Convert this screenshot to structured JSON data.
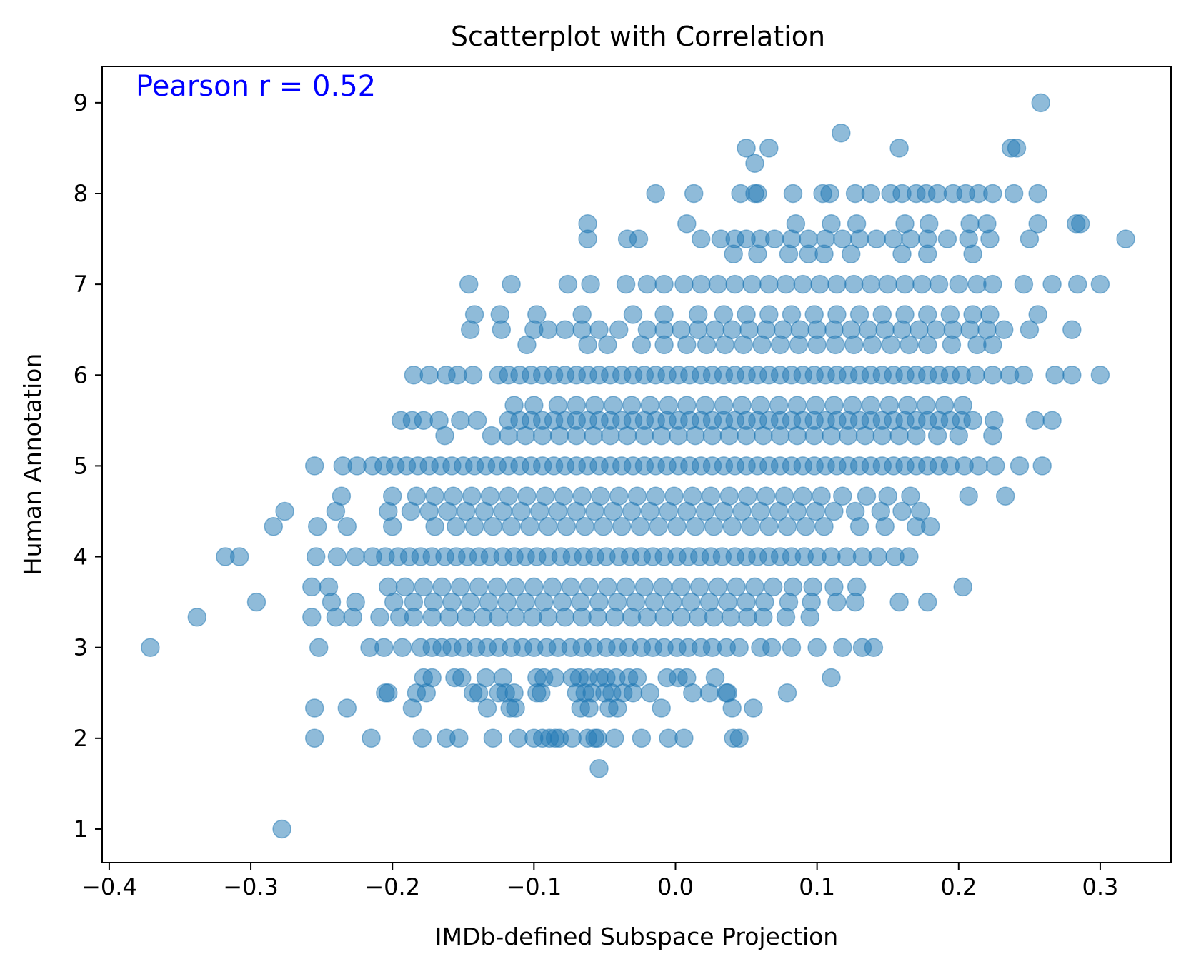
{
  "chart_data": {
    "type": "scatter",
    "title": "Scatterplot with Correlation",
    "xlabel": "IMDb-defined Subspace Projection",
    "ylabel": "Human Annotation",
    "xlim": [
      -0.405,
      0.35
    ],
    "ylim": [
      0.63,
      9.4
    ],
    "x_ticks": [
      -0.4,
      -0.3,
      -0.2,
      -0.1,
      0.0,
      0.1,
      0.2,
      0.3
    ],
    "x_tick_labels": [
      "−0.4",
      "−0.3",
      "−0.2",
      "−0.1",
      "0.0",
      "0.1",
      "0.2",
      "0.3"
    ],
    "y_ticks": [
      1,
      2,
      3,
      4,
      5,
      6,
      7,
      8,
      9
    ],
    "y_tick_labels": [
      "1",
      "2",
      "3",
      "4",
      "5",
      "6",
      "7",
      "8",
      "9"
    ],
    "grid": false,
    "legend": "none",
    "marker_color": "#1f77b4",
    "marker_alpha": 0.5,
    "annotation": {
      "text": "Pearson r = 0.52",
      "color": "#0000ff",
      "placement": "top-left"
    },
    "levels": [
      {
        "y": 1.0,
        "x": [
          -0.278
        ]
      },
      {
        "y": 1.667,
        "x": [
          -0.054
        ]
      },
      {
        "y": 2.0,
        "x": [
          -0.255,
          -0.215,
          -0.179,
          -0.162,
          -0.153,
          -0.129,
          -0.111,
          -0.1,
          -0.094,
          -0.089,
          -0.085,
          -0.082,
          -0.073,
          -0.062,
          -0.057,
          -0.055,
          -0.043,
          -0.024,
          -0.005,
          0.006,
          0.041,
          0.045
        ]
      },
      {
        "y": 2.333,
        "x": [
          -0.255,
          -0.232,
          -0.186,
          -0.133,
          -0.117,
          -0.113,
          -0.067,
          -0.061,
          -0.047,
          -0.041,
          -0.01,
          0.04,
          0.055
        ]
      },
      {
        "y": 2.5,
        "x": [
          -0.205,
          -0.203,
          -0.183,
          -0.176,
          -0.143,
          -0.139,
          -0.125,
          -0.12,
          -0.114,
          -0.098,
          -0.095,
          -0.07,
          -0.064,
          -0.059,
          -0.05,
          -0.045,
          -0.037,
          -0.03,
          -0.018,
          0.012,
          0.024,
          0.036,
          0.037,
          0.079
        ]
      },
      {
        "y": 2.667,
        "x": [
          -0.178,
          -0.172,
          -0.156,
          -0.151,
          -0.134,
          -0.122,
          -0.098,
          -0.093,
          -0.085,
          -0.073,
          -0.068,
          -0.062,
          -0.054,
          -0.049,
          -0.042,
          -0.033,
          -0.027,
          -0.006,
          0.002,
          0.008,
          0.028,
          0.11
        ]
      },
      {
        "y": 3.0,
        "x": [
          -0.371,
          -0.252,
          -0.216,
          -0.206,
          -0.193,
          -0.18,
          -0.172,
          -0.165,
          -0.158,
          -0.15,
          -0.141,
          -0.133,
          -0.125,
          -0.116,
          -0.108,
          -0.1,
          -0.091,
          -0.083,
          -0.074,
          -0.066,
          -0.058,
          -0.049,
          -0.041,
          -0.033,
          -0.024,
          -0.016,
          -0.008,
          0.001,
          0.009,
          0.018,
          0.026,
          0.036,
          0.045,
          0.06,
          0.068,
          0.082,
          0.1,
          0.118,
          0.132,
          0.14
        ]
      },
      {
        "y": 3.333,
        "x": [
          -0.338,
          -0.257,
          -0.24,
          -0.228,
          -0.209,
          -0.195,
          -0.185,
          -0.172,
          -0.16,
          -0.148,
          -0.136,
          -0.125,
          -0.113,
          -0.101,
          -0.09,
          -0.078,
          -0.066,
          -0.055,
          -0.043,
          -0.031,
          -0.02,
          -0.008,
          0.004,
          0.016,
          0.027,
          0.039,
          0.051,
          0.062,
          0.078,
          0.095
        ]
      },
      {
        "y": 3.5,
        "x": [
          -0.296,
          -0.243,
          -0.226,
          -0.199,
          -0.185,
          -0.171,
          -0.158,
          -0.145,
          -0.132,
          -0.119,
          -0.106,
          -0.093,
          -0.08,
          -0.067,
          -0.054,
          -0.041,
          -0.028,
          -0.015,
          -0.002,
          0.011,
          0.024,
          0.037,
          0.05,
          0.063,
          0.08,
          0.096,
          0.114,
          0.127,
          0.158,
          0.178
        ]
      },
      {
        "y": 3.667,
        "x": [
          -0.257,
          -0.245,
          -0.203,
          -0.191,
          -0.178,
          -0.165,
          -0.152,
          -0.139,
          -0.126,
          -0.113,
          -0.1,
          -0.087,
          -0.074,
          -0.061,
          -0.048,
          -0.035,
          -0.022,
          -0.009,
          0.004,
          0.017,
          0.03,
          0.043,
          0.056,
          0.069,
          0.083,
          0.097,
          0.112,
          0.128,
          0.203
        ]
      },
      {
        "y": 4.0,
        "x": [
          -0.318,
          -0.308,
          -0.254,
          -0.239,
          -0.226,
          -0.214,
          -0.205,
          -0.196,
          -0.188,
          -0.18,
          -0.172,
          -0.163,
          -0.155,
          -0.147,
          -0.139,
          -0.131,
          -0.122,
          -0.114,
          -0.106,
          -0.098,
          -0.09,
          -0.081,
          -0.073,
          -0.065,
          -0.057,
          -0.049,
          -0.04,
          -0.032,
          -0.024,
          -0.016,
          -0.008,
          0.001,
          0.009,
          0.017,
          0.025,
          0.033,
          0.042,
          0.05,
          0.058,
          0.066,
          0.074,
          0.082,
          0.091,
          0.1,
          0.11,
          0.121,
          0.132,
          0.143,
          0.155,
          0.165
        ]
      },
      {
        "y": 4.333,
        "x": [
          -0.284,
          -0.253,
          -0.232,
          -0.2,
          -0.17,
          -0.155,
          -0.142,
          -0.129,
          -0.116,
          -0.103,
          -0.09,
          -0.077,
          -0.064,
          -0.051,
          -0.038,
          -0.025,
          -0.012,
          0.001,
          0.014,
          0.027,
          0.04,
          0.053,
          0.066,
          0.079,
          0.092,
          0.105,
          0.13,
          0.148,
          0.17,
          0.18
        ]
      },
      {
        "y": 4.5,
        "x": [
          -0.276,
          -0.24,
          -0.203,
          -0.187,
          -0.174,
          -0.161,
          -0.148,
          -0.135,
          -0.122,
          -0.109,
          -0.096,
          -0.083,
          -0.07,
          -0.057,
          -0.044,
          -0.031,
          -0.018,
          -0.005,
          0.008,
          0.021,
          0.034,
          0.047,
          0.06,
          0.073,
          0.086,
          0.099,
          0.112,
          0.127,
          0.145,
          0.16,
          0.173
        ]
      },
      {
        "y": 4.667,
        "x": [
          -0.236,
          -0.2,
          -0.183,
          -0.17,
          -0.157,
          -0.144,
          -0.131,
          -0.118,
          -0.105,
          -0.092,
          -0.079,
          -0.066,
          -0.053,
          -0.04,
          -0.027,
          -0.014,
          -0.001,
          0.012,
          0.025,
          0.038,
          0.051,
          0.064,
          0.077,
          0.09,
          0.103,
          0.118,
          0.135,
          0.15,
          0.166,
          0.207,
          0.233
        ]
      },
      {
        "y": 5.0,
        "x": [
          -0.255,
          -0.235,
          -0.225,
          -0.214,
          -0.206,
          -0.198,
          -0.19,
          -0.182,
          -0.174,
          -0.166,
          -0.158,
          -0.15,
          -0.142,
          -0.134,
          -0.126,
          -0.118,
          -0.11,
          -0.102,
          -0.094,
          -0.086,
          -0.078,
          -0.07,
          -0.062,
          -0.054,
          -0.046,
          -0.038,
          -0.03,
          -0.022,
          -0.014,
          -0.006,
          0.002,
          0.01,
          0.018,
          0.026,
          0.034,
          0.042,
          0.05,
          0.058,
          0.066,
          0.074,
          0.082,
          0.09,
          0.098,
          0.106,
          0.114,
          0.122,
          0.13,
          0.138,
          0.146,
          0.154,
          0.162,
          0.17,
          0.178,
          0.186,
          0.194,
          0.204,
          0.214,
          0.226,
          0.243,
          0.259
        ]
      },
      {
        "y": 5.333,
        "x": [
          -0.163,
          -0.13,
          -0.118,
          -0.106,
          -0.094,
          -0.082,
          -0.07,
          -0.058,
          -0.046,
          -0.034,
          -0.022,
          -0.01,
          0.002,
          0.014,
          0.026,
          0.038,
          0.05,
          0.062,
          0.074,
          0.086,
          0.098,
          0.11,
          0.122,
          0.134,
          0.146,
          0.158,
          0.17,
          0.185,
          0.2,
          0.224
        ]
      },
      {
        "y": 5.5,
        "x": [
          -0.194,
          -0.186,
          -0.178,
          -0.167,
          -0.152,
          -0.14,
          -0.118,
          -0.11,
          -0.102,
          -0.094,
          -0.086,
          -0.078,
          -0.07,
          -0.062,
          -0.054,
          -0.046,
          -0.038,
          -0.03,
          -0.022,
          -0.014,
          -0.006,
          0.002,
          0.01,
          0.018,
          0.026,
          0.034,
          0.042,
          0.05,
          0.058,
          0.066,
          0.074,
          0.082,
          0.09,
          0.098,
          0.106,
          0.114,
          0.122,
          0.13,
          0.138,
          0.146,
          0.154,
          0.162,
          0.17,
          0.178,
          0.186,
          0.194,
          0.202,
          0.21,
          0.225,
          0.254,
          0.266
        ]
      },
      {
        "y": 5.667,
        "x": [
          -0.114,
          -0.1,
          -0.083,
          -0.07,
          -0.057,
          -0.044,
          -0.031,
          -0.018,
          -0.005,
          0.008,
          0.021,
          0.034,
          0.047,
          0.06,
          0.073,
          0.086,
          0.099,
          0.112,
          0.125,
          0.138,
          0.151,
          0.164,
          0.177,
          0.19,
          0.203
        ]
      },
      {
        "y": 6.0,
        "x": [
          -0.185,
          -0.174,
          -0.162,
          -0.154,
          -0.143,
          -0.125,
          -0.118,
          -0.11,
          -0.102,
          -0.094,
          -0.086,
          -0.078,
          -0.07,
          -0.062,
          -0.054,
          -0.046,
          -0.038,
          -0.03,
          -0.022,
          -0.014,
          -0.006,
          0.002,
          0.01,
          0.018,
          0.026,
          0.034,
          0.042,
          0.05,
          0.058,
          0.066,
          0.074,
          0.082,
          0.09,
          0.098,
          0.106,
          0.114,
          0.122,
          0.13,
          0.138,
          0.146,
          0.154,
          0.162,
          0.17,
          0.178,
          0.186,
          0.194,
          0.202,
          0.212,
          0.224,
          0.236,
          0.246,
          0.268,
          0.28,
          0.3
        ]
      },
      {
        "y": 6.333,
        "x": [
          -0.105,
          -0.062,
          -0.048,
          -0.024,
          -0.008,
          0.008,
          0.022,
          0.035,
          0.048,
          0.061,
          0.074,
          0.087,
          0.1,
          0.113,
          0.126,
          0.139,
          0.152,
          0.165,
          0.178,
          0.195,
          0.213,
          0.224
        ]
      },
      {
        "y": 6.5,
        "x": [
          -0.145,
          -0.123,
          -0.1,
          -0.09,
          -0.078,
          -0.066,
          -0.054,
          -0.04,
          -0.02,
          -0.008,
          0.004,
          0.016,
          0.028,
          0.04,
          0.052,
          0.064,
          0.076,
          0.088,
          0.1,
          0.112,
          0.124,
          0.136,
          0.148,
          0.16,
          0.172,
          0.184,
          0.196,
          0.208,
          0.22,
          0.232,
          0.25,
          0.28
        ]
      },
      {
        "y": 6.667,
        "x": [
          -0.142,
          -0.124,
          -0.098,
          -0.066,
          -0.03,
          -0.008,
          0.016,
          0.034,
          0.05,
          0.066,
          0.082,
          0.098,
          0.114,
          0.13,
          0.146,
          0.162,
          0.178,
          0.194,
          0.21,
          0.222,
          0.256
        ]
      },
      {
        "y": 7.0,
        "x": [
          -0.146,
          -0.116,
          -0.076,
          -0.06,
          -0.035,
          -0.02,
          -0.008,
          0.006,
          0.018,
          0.03,
          0.042,
          0.054,
          0.066,
          0.078,
          0.09,
          0.102,
          0.114,
          0.126,
          0.138,
          0.15,
          0.162,
          0.174,
          0.186,
          0.2,
          0.213,
          0.224,
          0.246,
          0.266,
          0.284,
          0.3
        ]
      },
      {
        "y": 7.333,
        "x": [
          0.041,
          0.058,
          0.08,
          0.094,
          0.105,
          0.124,
          0.16,
          0.178,
          0.21
        ]
      },
      {
        "y": 7.5,
        "x": [
          -0.062,
          -0.034,
          -0.026,
          0.018,
          0.032,
          0.042,
          0.05,
          0.06,
          0.07,
          0.082,
          0.094,
          0.106,
          0.118,
          0.13,
          0.142,
          0.154,
          0.166,
          0.178,
          0.192,
          0.207,
          0.222,
          0.25,
          0.318
        ]
      },
      {
        "y": 7.667,
        "x": [
          -0.062,
          0.008,
          0.085,
          0.11,
          0.128,
          0.162,
          0.179,
          0.208,
          0.22,
          0.256,
          0.283,
          0.286
        ]
      },
      {
        "y": 8.0,
        "x": [
          -0.014,
          0.013,
          0.046,
          0.056,
          0.058,
          0.083,
          0.104,
          0.109,
          0.127,
          0.138,
          0.152,
          0.16,
          0.17,
          0.177,
          0.185,
          0.196,
          0.205,
          0.214,
          0.224,
          0.239,
          0.256
        ]
      },
      {
        "y": 8.333,
        "x": [
          0.056
        ]
      },
      {
        "y": 8.5,
        "x": [
          0.05,
          0.066,
          0.158,
          0.237,
          0.241
        ]
      },
      {
        "y": 8.667,
        "x": [
          0.117
        ]
      },
      {
        "y": 9.0,
        "x": [
          0.258
        ]
      }
    ]
  }
}
